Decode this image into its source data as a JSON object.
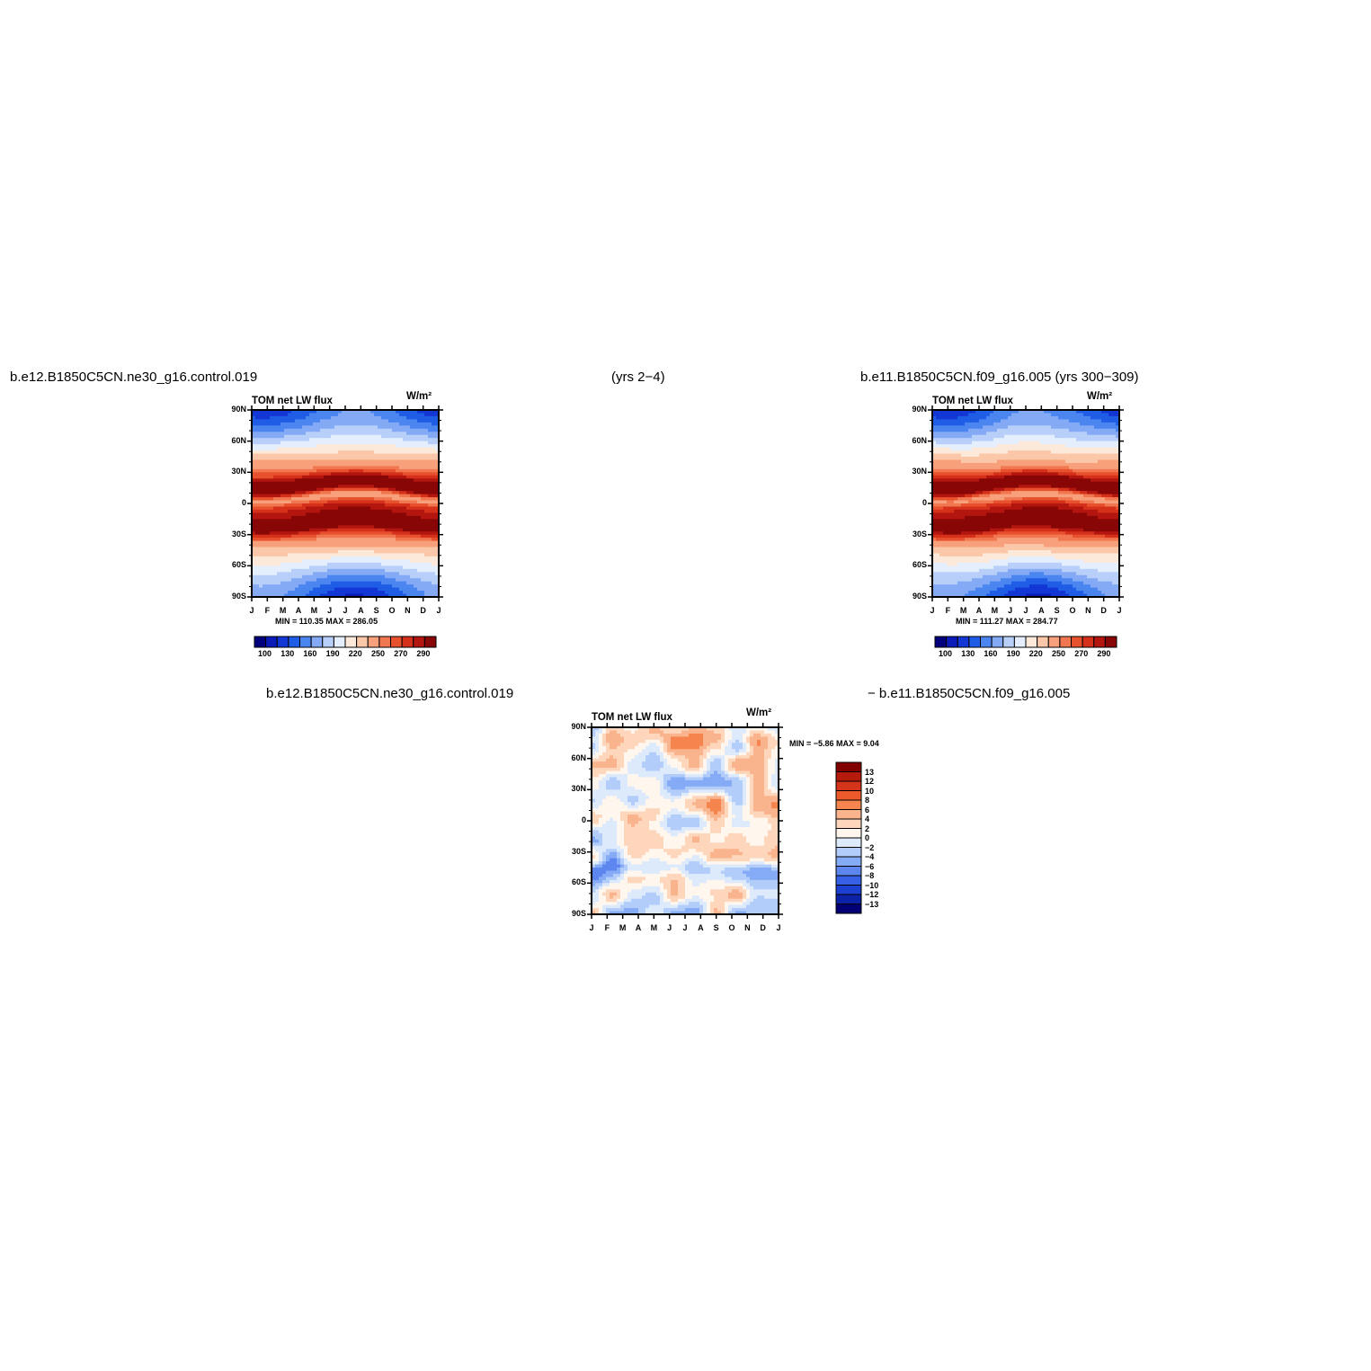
{
  "titles": {
    "left": "b.e12.B1850C5CN.ne30_g16.control.019",
    "center": "(yrs 2−4)",
    "right": "b.e11.B1850C5CN.f09_g16.005 (yrs 300−309)",
    "diff_left": "b.e12.B1850C5CN.ne30_g16.control.019",
    "diff_right": "− b.e11.B1850C5CN.f09_g16.005"
  },
  "colors": {
    "abs_scale": [
      "#02007a",
      "#0a1bb8",
      "#1337d4",
      "#1f5de6",
      "#4b85f0",
      "#84aaf5",
      "#b8d0f9",
      "#e4eefd",
      "#fde9d9",
      "#fbc7a9",
      "#f7a07b",
      "#f17750",
      "#e8512d",
      "#d4301a",
      "#b3160e",
      "#890606"
    ],
    "diff_scale": [
      "#830000",
      "#b51a0c",
      "#d43419",
      "#ec5a2c",
      "#f6844f",
      "#fab48d",
      "#fdd6bc",
      "#fff6ee",
      "#ddeafc",
      "#b3cdfa",
      "#86abf6",
      "#5d86ef",
      "#3660e6",
      "#1c40d2",
      "#0c22a8",
      "#020073"
    ]
  },
  "chart_data": [
    {
      "type": "heatmap",
      "title": "TOM net LW flux",
      "units": "W/m²",
      "x_ticks": [
        "J",
        "F",
        "M",
        "A",
        "M",
        "J",
        "J",
        "A",
        "S",
        "O",
        "N",
        "D",
        "J"
      ],
      "y_ticks": [
        "90N",
        "60N",
        "30N",
        "0",
        "30S",
        "60S",
        "90S"
      ],
      "ylim": [
        -90,
        90
      ],
      "stats": "MIN = 110.35  MAX = 286.05",
      "colorbar_labels": [
        "100",
        "130",
        "160",
        "190",
        "220",
        "250",
        "270",
        "290"
      ],
      "field": "model_a"
    },
    {
      "type": "heatmap",
      "title": "TOM net LW flux",
      "units": "W/m²",
      "x_ticks": [
        "J",
        "F",
        "M",
        "A",
        "M",
        "J",
        "J",
        "A",
        "S",
        "O",
        "N",
        "D",
        "J"
      ],
      "y_ticks": [
        "90N",
        "60N",
        "30N",
        "0",
        "30S",
        "60S",
        "90S"
      ],
      "ylim": [
        -90,
        90
      ],
      "stats": "MIN = 111.27  MAX = 284.77",
      "colorbar_labels": [
        "100",
        "130",
        "160",
        "190",
        "220",
        "250",
        "270",
        "290"
      ],
      "field": "model_b"
    },
    {
      "type": "heatmap",
      "title": "TOM net LW flux",
      "units": "W/m²",
      "x_ticks": [
        "J",
        "F",
        "M",
        "A",
        "M",
        "J",
        "J",
        "A",
        "S",
        "O",
        "N",
        "D",
        "J"
      ],
      "y_ticks": [
        "90N",
        "60N",
        "30N",
        "0",
        "30S",
        "60S",
        "90S"
      ],
      "ylim": [
        -90,
        90
      ],
      "stats": "MIN =   −5.86  MAX =     9.04",
      "colorbar_labels": [
        "13",
        "12",
        "10",
        "8",
        "6",
        "4",
        "2",
        "0",
        "−2",
        "−4",
        "−6",
        "−8",
        "−10",
        "−12",
        "−13"
      ],
      "field": "difference"
    }
  ]
}
